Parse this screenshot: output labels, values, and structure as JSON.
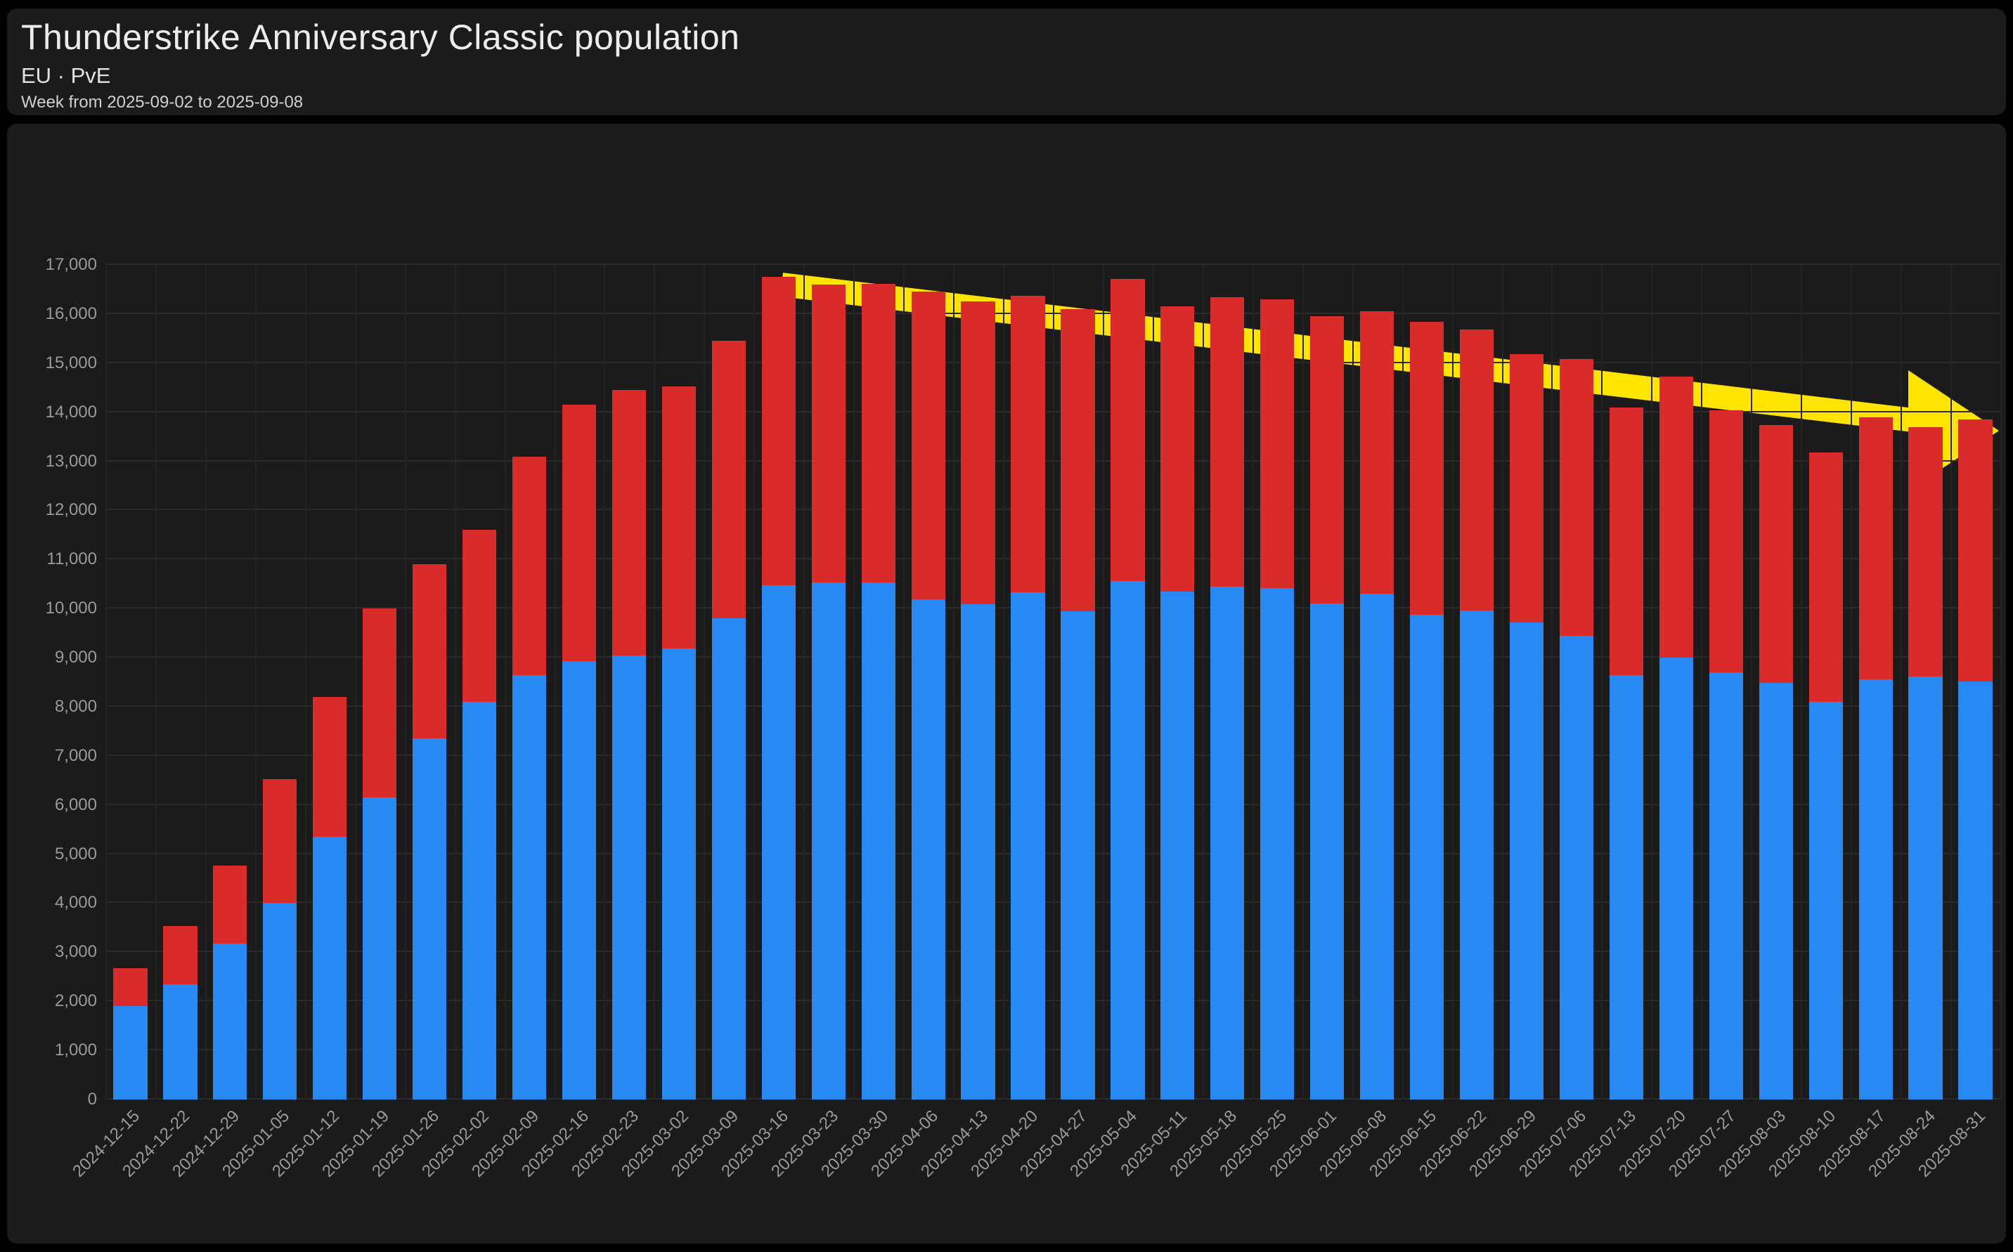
{
  "header": {
    "title": "Thunderstrike Anniversary Classic population",
    "subtitle": "EU · PvE",
    "period": "Week from 2025-09-02 to 2025-09-08"
  },
  "colors": {
    "page_bg": "#000000",
    "card_bg": "#1b1b1c",
    "grid": "#2b2b2c",
    "grid_vertical": "#242425",
    "axis_text": "#9a9a9a",
    "blue": "#2789f1",
    "red": "#d92b2a",
    "arrow": "#ffe400"
  },
  "chart_data": {
    "type": "bar",
    "stacked": true,
    "legend": false,
    "grid": true,
    "ylim": [
      0,
      17000
    ],
    "ytick_step": 1000,
    "xlabel": "",
    "ylabel": "",
    "categories": [
      "2024-12-15",
      "2024-12-22",
      "2024-12-29",
      "2025-01-05",
      "2025-01-12",
      "2025-01-19",
      "2025-01-26",
      "2025-02-02",
      "2025-02-09",
      "2025-02-16",
      "2025-02-23",
      "2025-03-02",
      "2025-03-09",
      "2025-03-16",
      "2025-03-23",
      "2025-03-30",
      "2025-04-06",
      "2025-04-13",
      "2025-04-20",
      "2025-04-27",
      "2025-05-04",
      "2025-05-11",
      "2025-05-18",
      "2025-05-25",
      "2025-06-01",
      "2025-06-08",
      "2025-06-15",
      "2025-06-22",
      "2025-06-29",
      "2025-07-06",
      "2025-07-13",
      "2025-07-20",
      "2025-07-27",
      "2025-08-03",
      "2025-08-10",
      "2025-08-17",
      "2025-08-24",
      "2025-08-31"
    ],
    "series": [
      {
        "name": "blue",
        "color": "#2789f1",
        "values": [
          1900,
          2350,
          3180,
          4000,
          5350,
          6150,
          7350,
          8100,
          8650,
          8930,
          9050,
          9180,
          9800,
          10480,
          10530,
          10530,
          10190,
          10090,
          10330,
          9940,
          10560,
          10350,
          10450,
          10420,
          10100,
          10300,
          9870,
          9960,
          9720,
          9440,
          8650,
          9000,
          8700,
          8480,
          8100,
          8560,
          8620,
          8520
        ]
      },
      {
        "name": "red",
        "color": "#d92b2a",
        "values": [
          780,
          1180,
          1580,
          2530,
          2850,
          3850,
          3550,
          3500,
          4450,
          5220,
          5400,
          5340,
          5660,
          6280,
          6070,
          6090,
          6260,
          6160,
          6040,
          6160,
          6160,
          5800,
          5890,
          5880,
          5860,
          5760,
          5970,
          5730,
          5470,
          5640,
          5450,
          5720,
          5340,
          5260,
          5080,
          5340,
          5080,
          5330
        ]
      }
    ],
    "totals": [
      2680,
      3530,
      4760,
      6530,
      8200,
      10000,
      10900,
      11600,
      13100,
      14150,
      14450,
      14520,
      15460,
      16760,
      16600,
      16620,
      16450,
      16250,
      16370,
      16100,
      16720,
      16150,
      16340,
      16300,
      15960,
      16060,
      15840,
      15690,
      15190,
      15080,
      14100,
      14720,
      14040,
      13740,
      13180,
      13900,
      13700,
      13850
    ],
    "annotation": {
      "type": "arrow",
      "color": "#ffe400",
      "direction": "down-right",
      "from_value": 16600,
      "to_value": 13600
    }
  }
}
